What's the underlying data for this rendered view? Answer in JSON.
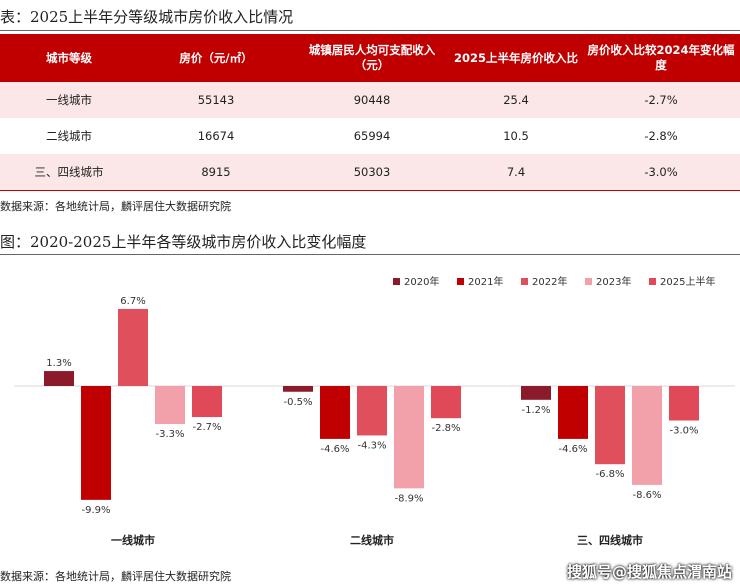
{
  "table_title": "表：2025上半年分等级城市房价收入比情况",
  "table": {
    "headers": [
      "城市等级",
      "房价（元/㎡）",
      "城镇居民人均可支配收入（元）",
      "2025上半年房价收入比",
      "房价收入比较2024年变化幅度"
    ],
    "rows": [
      [
        "一线城市",
        "55143",
        "90448",
        "25.4",
        "-2.7%"
      ],
      [
        "二线城市",
        "16674",
        "65994",
        "10.5",
        "-2.8%"
      ],
      [
        "三、四线城市",
        "8915",
        "50303",
        "7.4",
        "-3.0%"
      ]
    ]
  },
  "table_source": "数据来源：各地统计局，麟评居住大数据研究院",
  "chart_title": "图：2020-2025上半年各等级城市房价收入比变化幅度",
  "chart_source": "数据来源：各地统计局，麟评居住大数据研究院",
  "watermark": "搜狐号@搜狐焦点渭南站",
  "chart_data": {
    "type": "bar",
    "categories": [
      "一线城市",
      "二线城市",
      "三、四线城市"
    ],
    "series": [
      {
        "name": "2020年",
        "color": "#8b1a2b",
        "values": [
          1.3,
          -0.5,
          -1.2
        ]
      },
      {
        "name": "2021年",
        "color": "#c00000",
        "values": [
          -9.9,
          -4.6,
          -4.6
        ]
      },
      {
        "name": "2022年",
        "color": "#e0505c",
        "values": [
          6.7,
          -4.3,
          -6.8
        ]
      },
      {
        "name": "2023年",
        "color": "#f2a0aa",
        "values": [
          -3.3,
          -8.9,
          -8.6
        ]
      },
      {
        "name": "2025上半年",
        "color": "#e04a58",
        "values": [
          -2.7,
          -2.8,
          -3.0
        ]
      }
    ],
    "value_suffix": "%",
    "legend": "top-right",
    "grid": false
  }
}
